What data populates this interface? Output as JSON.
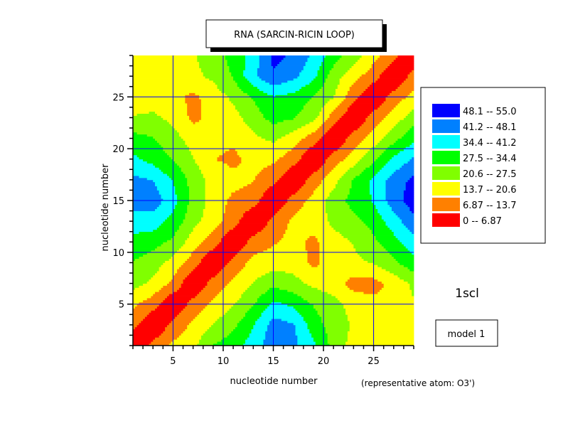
{
  "chart_data": {
    "type": "heatmap",
    "subtype": "filled-contour",
    "title": "RNA (SARCIN-RICIN LOOP)",
    "xlabel": "nucleotide number",
    "ylabel": "nucleotide number",
    "xlim": [
      1,
      29
    ],
    "ylim": [
      1,
      29
    ],
    "xticks": [
      5,
      10,
      15,
      20,
      25
    ],
    "yticks": [
      5,
      10,
      15,
      20,
      25
    ],
    "grid": true,
    "grid_color": "#0000ff",
    "structure_id": "1scl",
    "model_label": "model 1",
    "note": "(representative atom: O3')",
    "legend_placement": "right",
    "levels": [
      {
        "label": "48.1  --  55.0",
        "min": 48.1,
        "max": 55.0,
        "color": "#0000ff"
      },
      {
        "label": "41.2  --  48.1",
        "min": 41.2,
        "max": 48.1,
        "color": "#0080ff"
      },
      {
        "label": "34.4  --  41.2",
        "min": 34.4,
        "max": 41.2,
        "color": "#00ffff"
      },
      {
        "label": "27.5  --  34.4",
        "min": 27.5,
        "max": 34.4,
        "color": "#00ff00"
      },
      {
        "label": "20.6  --  27.5",
        "min": 20.6,
        "max": 27.5,
        "color": "#80ff00"
      },
      {
        "label": "13.7  --  20.6",
        "min": 13.7,
        "max": 20.6,
        "color": "#ffff00"
      },
      {
        "label": "6.87  --  13.7",
        "min": 6.87,
        "max": 13.7,
        "color": "#ff8000"
      },
      {
        "label": "0  --  6.87",
        "min": 0,
        "max": 6.87,
        "color": "#ff0000"
      }
    ],
    "grid_x": [
      1,
      3,
      5,
      7,
      9,
      11,
      13,
      15,
      17,
      19,
      21,
      23,
      25,
      27,
      29
    ],
    "grid_y": [
      1,
      3,
      5,
      7,
      9,
      11,
      13,
      15,
      17,
      19,
      21,
      23,
      25,
      27,
      29
    ],
    "z_rows_by_y": [
      [
        0,
        9,
        15,
        19,
        28,
        31,
        38,
        45,
        43,
        36,
        25,
        18,
        17,
        17,
        17
      ],
      [
        9,
        0,
        9,
        15,
        21,
        26,
        34,
        44,
        42,
        31,
        24,
        20,
        17,
        17,
        17
      ],
      [
        15,
        10,
        0,
        10,
        15,
        20,
        27,
        36,
        33,
        27,
        23,
        18,
        16,
        16,
        20
      ],
      [
        23,
        19,
        12,
        0,
        10,
        15,
        21,
        26,
        23,
        19,
        17,
        11,
        11,
        16,
        22
      ],
      [
        27,
        24,
        18,
        10,
        0,
        9,
        16,
        17,
        18,
        12,
        17,
        19,
        21,
        26,
        32
      ],
      [
        32,
        30,
        26,
        17,
        10,
        0,
        10,
        13,
        16,
        12,
        18,
        21,
        26,
        32,
        38
      ],
      [
        38,
        38,
        32,
        23,
        17,
        10,
        0,
        9,
        15,
        17,
        22,
        25,
        30,
        38,
        46
      ],
      [
        45,
        45,
        37,
        25,
        18,
        12,
        10,
        0,
        10,
        16,
        24,
        30,
        35,
        45,
        52
      ],
      [
        43,
        41,
        34,
        25,
        18,
        16,
        14,
        9,
        0,
        10,
        18,
        28,
        36,
        44,
        50
      ],
      [
        36,
        32,
        27,
        21,
        14,
        12,
        16,
        15,
        10,
        0,
        10,
        17,
        26,
        36,
        42
      ],
      [
        30,
        28,
        23,
        18,
        16,
        15,
        19,
        22,
        17,
        10,
        0,
        10,
        17,
        25,
        33
      ],
      [
        21,
        22,
        19,
        12,
        16,
        18,
        24,
        30,
        28,
        23,
        10,
        0,
        10,
        17,
        24
      ],
      [
        17,
        17,
        16,
        12,
        17,
        22,
        28,
        34,
        32,
        27,
        21,
        9,
        0,
        10,
        16
      ],
      [
        17,
        17,
        17,
        19,
        22,
        28,
        40,
        47,
        43,
        36,
        24,
        16,
        10,
        0,
        10
      ],
      [
        17,
        17,
        18,
        20,
        24,
        30,
        37,
        50,
        47,
        40,
        31,
        24,
        16,
        9,
        0
      ]
    ]
  }
}
